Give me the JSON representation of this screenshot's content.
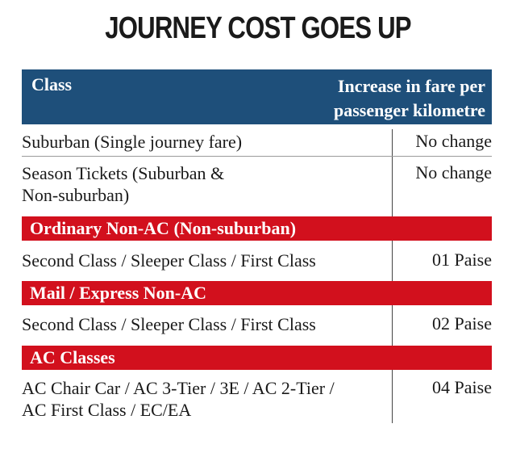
{
  "title": "JOURNEY COST GOES UP",
  "header": {
    "class_label": "Class",
    "increase_label_line1": "Increase in fare per",
    "increase_label_line2": "passenger kilometre"
  },
  "rows": [
    {
      "class_line1": "Suburban (Single journey fare)",
      "value": "No change"
    },
    {
      "class_line1": "Season Tickets (Suburban &",
      "class_line2": "Non-suburban)",
      "value": "No change"
    }
  ],
  "sections": [
    {
      "heading": "Ordinary Non-AC (Non-suburban)",
      "class_line1": "Second Class / Sleeper Class / First Class",
      "value": "01 Paise"
    },
    {
      "heading": "Mail / Express Non-AC",
      "class_line1": "Second Class / Sleeper Class / First Class",
      "value": "02 Paise"
    },
    {
      "heading": "AC Classes",
      "class_line1": "AC Chair Car / AC 3-Tier / 3E / AC 2-Tier /",
      "class_line2": "AC First Class / EC/EA",
      "value": "04 Paise"
    }
  ],
  "colors": {
    "header_bg": "#1e4f7a",
    "band_bg": "#d2101d"
  }
}
